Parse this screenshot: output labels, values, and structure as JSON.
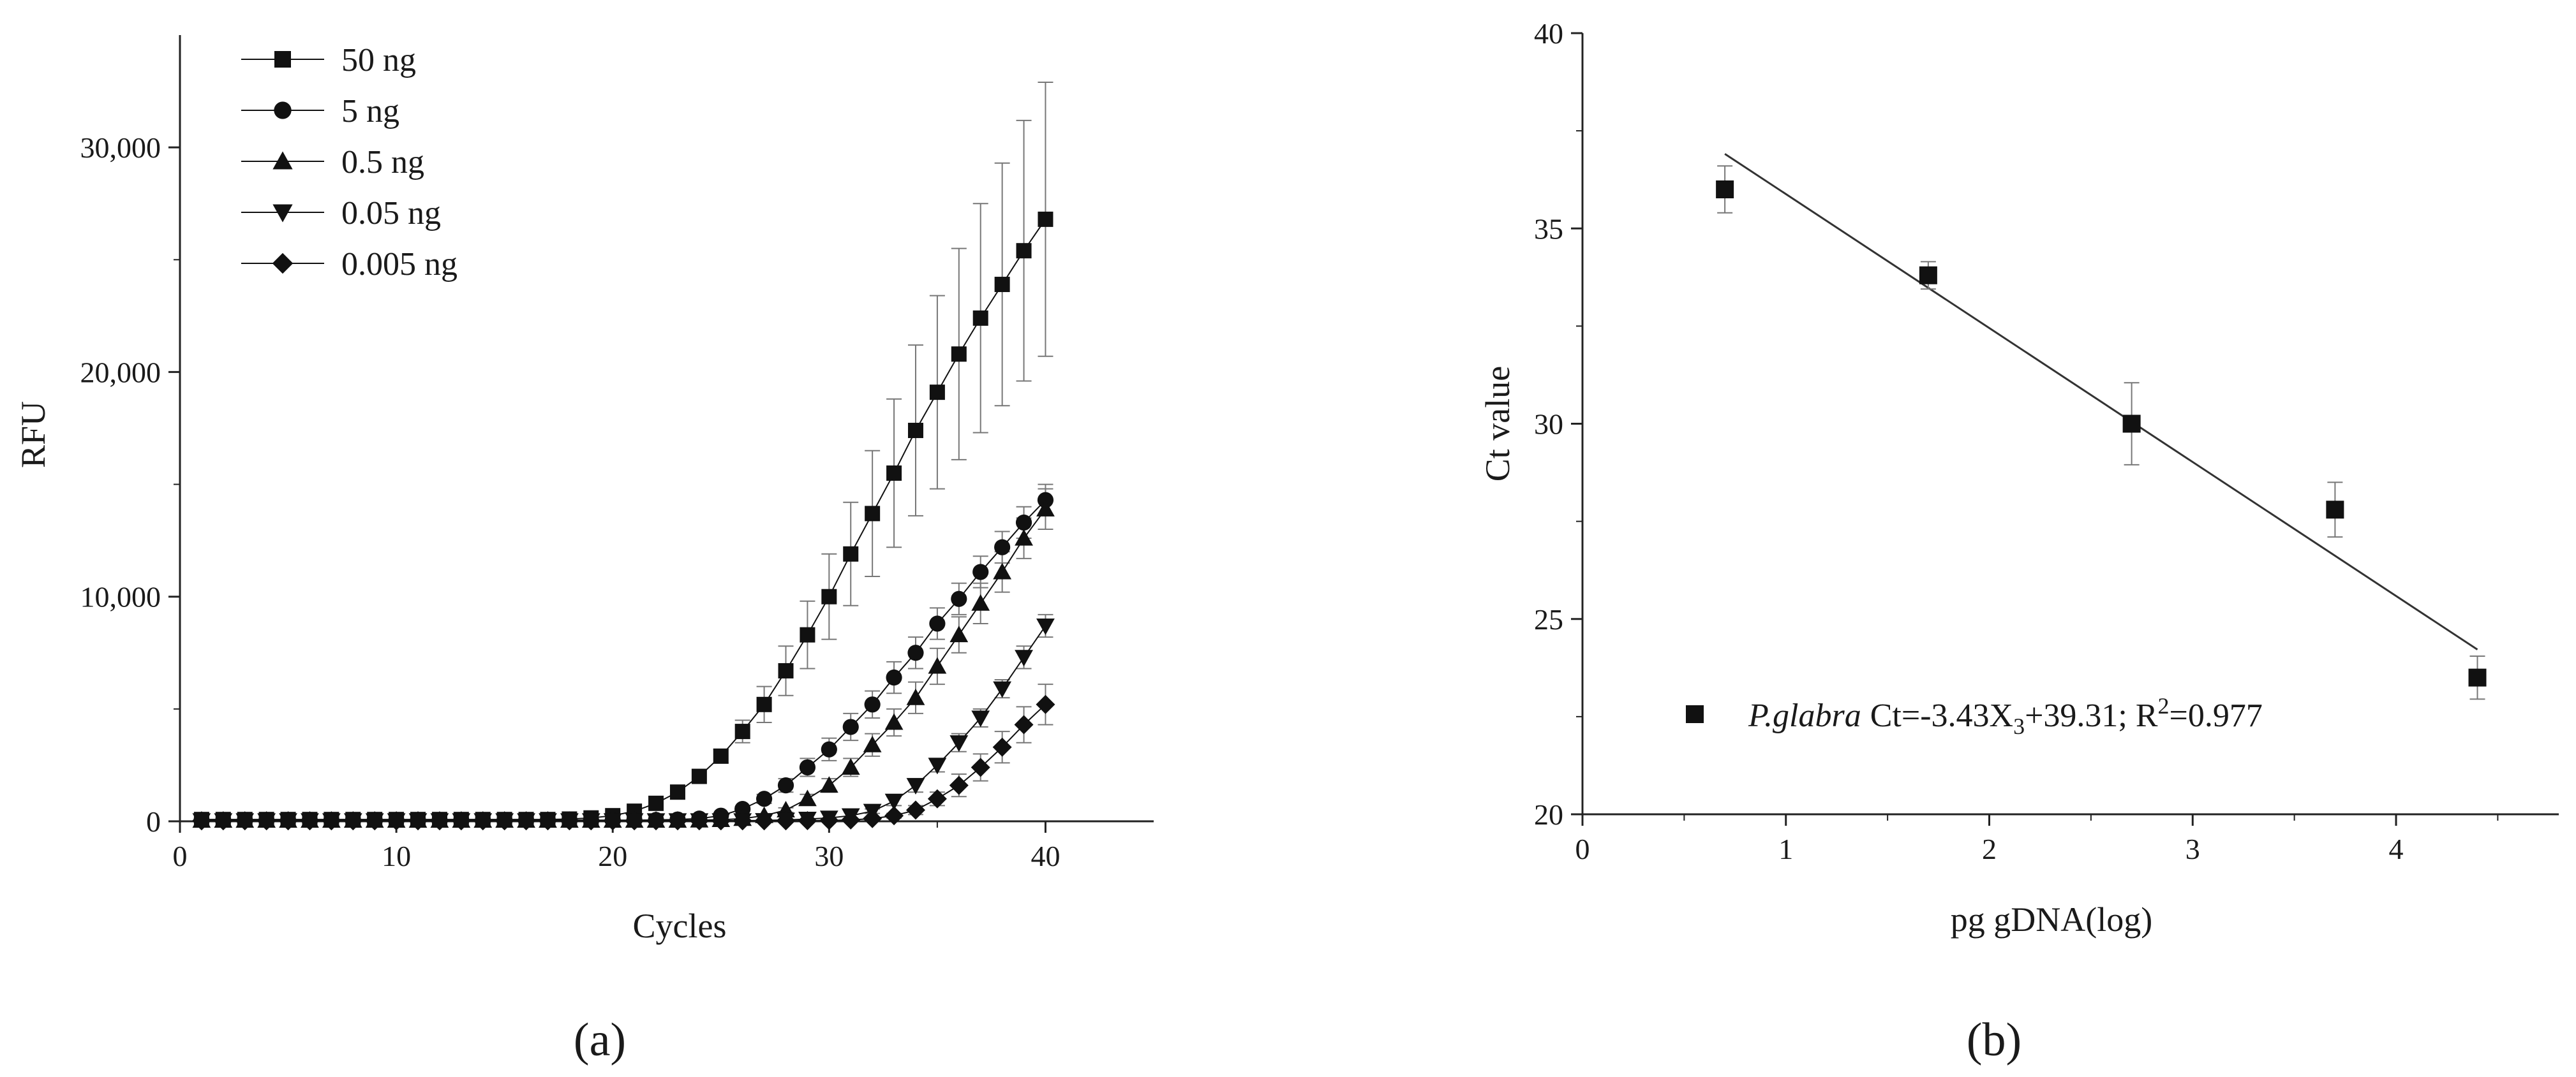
{
  "chart_data": [
    {
      "panel_label": "a",
      "type": "line",
      "xlabel": "Cycles",
      "ylabel": "RFU",
      "xlim": [
        0,
        45
      ],
      "ylim": [
        0,
        35000
      ],
      "x_ticks": [
        0,
        10,
        20,
        30,
        40
      ],
      "x_tick_labels": [
        "0",
        "10",
        "20",
        "30",
        "40"
      ],
      "y_ticks": [
        0,
        10000,
        20000,
        30000
      ],
      "y_tick_labels": [
        "0",
        "10,000",
        "20,000",
        "30,000"
      ],
      "grid": false,
      "legend_position": "top-left",
      "x": [
        1,
        2,
        3,
        4,
        5,
        6,
        7,
        8,
        9,
        10,
        11,
        12,
        13,
        14,
        15,
        16,
        17,
        18,
        19,
        20,
        21,
        22,
        23,
        24,
        25,
        26,
        27,
        28,
        29,
        30,
        31,
        32,
        33,
        34,
        35,
        36,
        37,
        38,
        39,
        40
      ],
      "series": [
        {
          "name": "50 ng",
          "marker": "square",
          "values": [
            80,
            80,
            80,
            80,
            80,
            80,
            80,
            80,
            80,
            80,
            80,
            80,
            80,
            80,
            80,
            80,
            80,
            100,
            150,
            250,
            450,
            800,
            1300,
            2000,
            2900,
            4000,
            5200,
            6700,
            8300,
            10000,
            11900,
            13700,
            15500,
            17400,
            19100,
            20800,
            22400,
            23900,
            25400,
            26800
          ],
          "errors": [
            0,
            0,
            0,
            0,
            0,
            0,
            0,
            0,
            0,
            0,
            0,
            0,
            0,
            0,
            0,
            0,
            0,
            0,
            0,
            0,
            0,
            0,
            0,
            0,
            300,
            500,
            800,
            1100,
            1500,
            1900,
            2300,
            2800,
            3300,
            3800,
            4300,
            4700,
            5100,
            5400,
            5800,
            6100
          ]
        },
        {
          "name": "5 ng",
          "marker": "circle",
          "values": [
            50,
            50,
            50,
            50,
            50,
            50,
            50,
            50,
            50,
            50,
            50,
            50,
            50,
            50,
            50,
            50,
            50,
            50,
            50,
            50,
            50,
            60,
            80,
            120,
            250,
            550,
            1000,
            1600,
            2400,
            3200,
            4200,
            5200,
            6400,
            7500,
            8800,
            9900,
            11100,
            12200,
            13300,
            14300
          ],
          "errors": [
            0,
            0,
            0,
            0,
            0,
            0,
            0,
            0,
            0,
            0,
            0,
            0,
            0,
            0,
            0,
            0,
            0,
            0,
            0,
            0,
            0,
            0,
            0,
            0,
            0,
            100,
            200,
            300,
            400,
            500,
            600,
            600,
            700,
            700,
            700,
            700,
            700,
            700,
            700,
            700
          ]
        },
        {
          "name": "0.5 ng",
          "marker": "triangle-up",
          "values": [
            40,
            40,
            40,
            40,
            40,
            40,
            40,
            40,
            40,
            40,
            40,
            40,
            40,
            40,
            40,
            40,
            40,
            40,
            40,
            40,
            40,
            40,
            40,
            50,
            70,
            120,
            250,
            500,
            1000,
            1600,
            2400,
            3400,
            4400,
            5500,
            6900,
            8300,
            9700,
            11100,
            12600,
            13900
          ],
          "errors": [
            0,
            0,
            0,
            0,
            0,
            0,
            0,
            0,
            0,
            0,
            0,
            0,
            0,
            0,
            0,
            0,
            0,
            0,
            0,
            0,
            0,
            0,
            0,
            0,
            0,
            0,
            0,
            100,
            200,
            300,
            400,
            500,
            600,
            700,
            800,
            800,
            900,
            900,
            900,
            900
          ]
        },
        {
          "name": "0.05 ng",
          "marker": "triangle-down",
          "values": [
            30,
            30,
            30,
            30,
            30,
            30,
            30,
            30,
            30,
            30,
            30,
            30,
            30,
            30,
            30,
            30,
            30,
            30,
            30,
            30,
            30,
            30,
            30,
            30,
            30,
            30,
            40,
            60,
            100,
            150,
            250,
            450,
            900,
            1600,
            2500,
            3500,
            4600,
            5900,
            7300,
            8700
          ],
          "errors": [
            0,
            0,
            0,
            0,
            0,
            0,
            0,
            0,
            0,
            0,
            0,
            0,
            0,
            0,
            0,
            0,
            0,
            0,
            0,
            0,
            0,
            0,
            0,
            0,
            0,
            0,
            0,
            0,
            0,
            0,
            0,
            100,
            200,
            300,
            300,
            400,
            400,
            400,
            500,
            500
          ]
        },
        {
          "name": "0.005 ng",
          "marker": "diamond",
          "values": [
            20,
            20,
            20,
            20,
            20,
            20,
            20,
            20,
            20,
            20,
            20,
            20,
            20,
            20,
            20,
            20,
            20,
            20,
            20,
            20,
            20,
            20,
            20,
            20,
            20,
            20,
            20,
            20,
            30,
            40,
            60,
            120,
            250,
            500,
            1000,
            1600,
            2400,
            3300,
            4300,
            5200
          ],
          "errors": [
            0,
            0,
            0,
            0,
            0,
            0,
            0,
            0,
            0,
            0,
            0,
            0,
            0,
            0,
            0,
            0,
            0,
            0,
            0,
            0,
            0,
            0,
            0,
            0,
            0,
            0,
            0,
            0,
            0,
            0,
            0,
            0,
            100,
            200,
            300,
            500,
            600,
            700,
            800,
            900
          ]
        }
      ]
    },
    {
      "panel_label": "b",
      "type": "scatter",
      "xlabel": "pg gDNA(log)",
      "ylabel": "Ct value",
      "xlim": [
        0,
        4.8
      ],
      "ylim": [
        20,
        40
      ],
      "x_ticks": [
        0,
        1,
        2,
        3,
        4
      ],
      "x_tick_labels": [
        "0",
        "1",
        "2",
        "3",
        "4"
      ],
      "y_ticks": [
        20,
        25,
        30,
        35,
        40
      ],
      "y_tick_labels": [
        "20",
        "25",
        "30",
        "35",
        "40"
      ],
      "grid": false,
      "legend_position": "bottom-left",
      "series": [
        {
          "marker": "square",
          "x": [
            0.7,
            1.7,
            2.7,
            3.7,
            4.4
          ],
          "y": [
            36.0,
            33.8,
            30.0,
            27.8,
            23.5
          ],
          "errors": [
            0.6,
            0.35,
            1.05,
            0.7,
            0.55
          ]
        }
      ],
      "fit_line": {
        "slope": -3.43,
        "intercept": 39.31,
        "x_range": [
          0.7,
          4.4
        ]
      },
      "legend": {
        "species": "P.glabra",
        "eq_before_sub": "Ct=-3.43X",
        "eq_sub": "3",
        "eq_mid": "+39.31; R",
        "eq_sup": "2",
        "eq_after": "=0.977"
      }
    }
  ]
}
